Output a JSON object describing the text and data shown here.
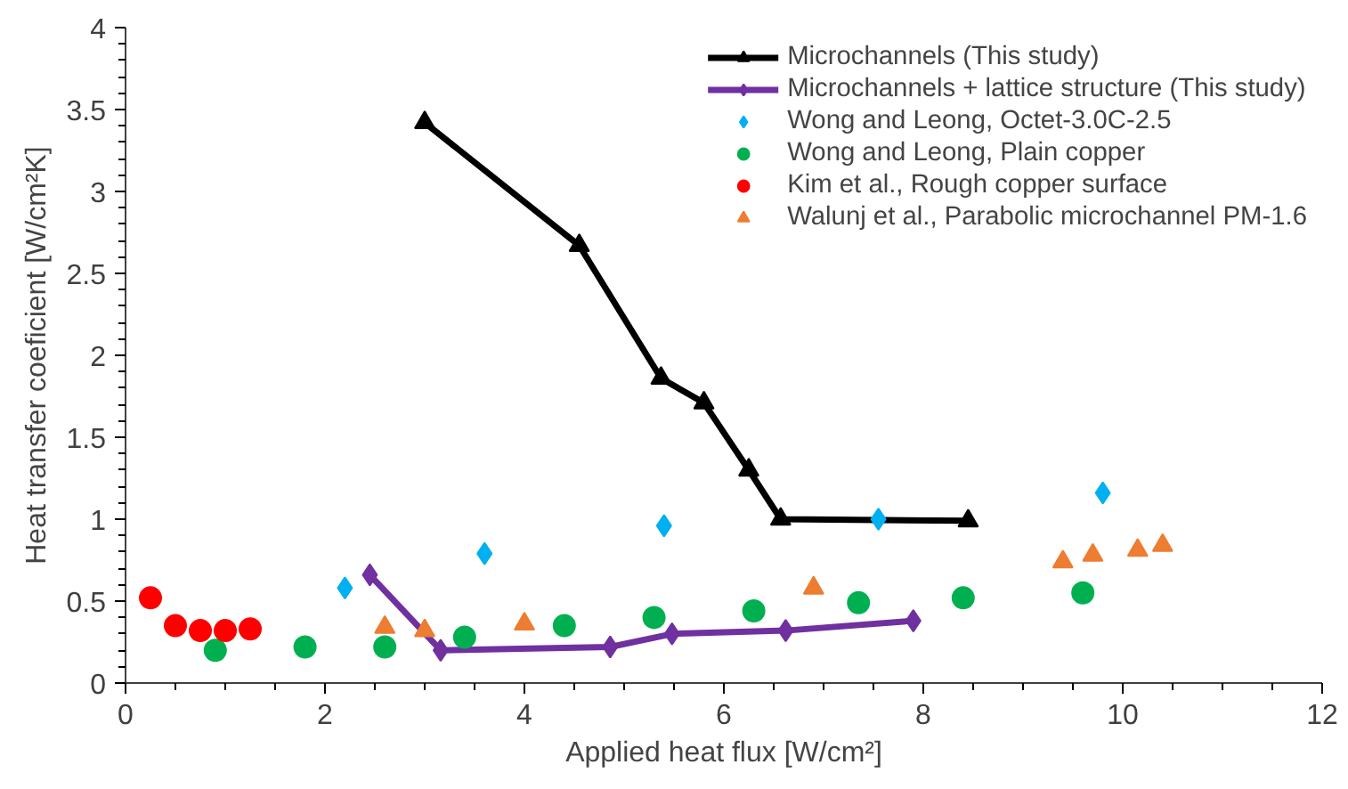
{
  "chart_data": {
    "type": "line",
    "xlabel": "Applied heat flux [W/cm²]",
    "ylabel": "Heat transfer coeficient [W/cm²K]",
    "xlim": [
      0,
      12
    ],
    "xticks": [
      0,
      2,
      4,
      6,
      8,
      10,
      12
    ],
    "ylim": [
      0,
      4
    ],
    "yticks": [
      0,
      0.5,
      1,
      1.5,
      2,
      2.5,
      3,
      3.5,
      4
    ],
    "grid": false,
    "legend": "top right",
    "series": [
      {
        "name": "Microchannels (This study)",
        "marker": "triangle",
        "color": "#000000",
        "x": [
          3.0,
          4.55,
          5.37,
          5.8,
          6.25,
          6.57,
          8.45
        ],
        "values": [
          3.42,
          2.67,
          1.86,
          1.71,
          1.3,
          1.0,
          0.99
        ]
      },
      {
        "name": "Microchannels + lattice structure (This study)",
        "marker": "diamond",
        "color": "#7030a0",
        "x": [
          2.45,
          3.16,
          4.86,
          5.48,
          6.62,
          7.9
        ],
        "values": [
          0.66,
          0.2,
          0.22,
          0.3,
          0.32,
          0.38
        ]
      },
      {
        "name": "Wong and Leong, Octet-3.0C-2.5",
        "type": "scatter",
        "marker": "diamond",
        "color": "#00b0f0",
        "x": [
          2.2,
          3.6,
          5.4,
          7.55,
          9.8
        ],
        "values": [
          0.58,
          0.79,
          0.96,
          1.0,
          1.16
        ]
      },
      {
        "name": "Wong and Leong, Plain copper",
        "type": "scatter",
        "marker": "circle",
        "color": "#00b050",
        "x": [
          0.9,
          1.8,
          2.6,
          3.4,
          4.4,
          5.3,
          6.3,
          7.35,
          8.4,
          9.6
        ],
        "values": [
          0.2,
          0.22,
          0.22,
          0.28,
          0.35,
          0.4,
          0.44,
          0.49,
          0.52,
          0.55
        ]
      },
      {
        "name": "Kim et al., Rough copper surface",
        "type": "scatter",
        "marker": "circle",
        "color": "#ff0000",
        "x": [
          0.25,
          0.5,
          0.75,
          1.0,
          1.25
        ],
        "values": [
          0.52,
          0.35,
          0.32,
          0.32,
          0.33
        ]
      },
      {
        "name": "Walunj et al., Parabolic microchannel PM-1.6",
        "type": "scatter",
        "marker": "triangle",
        "color": "#ed7d31",
        "x": [
          2.6,
          3.0,
          4.0,
          6.9,
          9.4,
          9.7,
          10.15,
          10.4
        ],
        "values": [
          0.34,
          0.32,
          0.36,
          0.58,
          0.74,
          0.78,
          0.81,
          0.84
        ]
      }
    ]
  }
}
